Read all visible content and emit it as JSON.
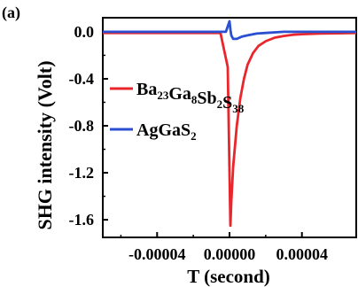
{
  "panel_label": "(a)",
  "chart_data": {
    "type": "line",
    "xlabel": "T (second)",
    "ylabel": "SHG intensity (Volt)",
    "xlim": [
      -7e-05,
      7e-05
    ],
    "ylim": [
      -1.75,
      0.12
    ],
    "x_ticks": [
      -4e-05,
      0.0,
      4e-05
    ],
    "x_tick_labels": [
      "-0.00004",
      "0.00000",
      "0.00004"
    ],
    "y_ticks": [
      0.0,
      -0.4,
      -0.8,
      -1.2,
      -1.6
    ],
    "y_tick_labels": [
      "0.0",
      "-0.4",
      "-0.8",
      "-1.2",
      "-1.6"
    ],
    "legend_position": "center-left",
    "series": [
      {
        "name_main": "Ba",
        "name_parts": [
          [
            "Ba",
            "23"
          ],
          [
            "Ga",
            "8"
          ],
          [
            "Sb",
            "2"
          ],
          [
            "S",
            "38"
          ]
        ],
        "color": "#e8262b",
        "x": [
          -7e-05,
          -4e-05,
          -2e-05,
          -5e-06,
          -1e-06,
          0.0,
          5e-07,
          1e-06,
          2e-06,
          4e-06,
          6e-06,
          8e-06,
          1e-05,
          1.3e-05,
          1.6e-05,
          2e-05,
          2.5e-05,
          3e-05,
          3.5e-05,
          4e-05,
          5e-05,
          7e-05
        ],
        "y": [
          -0.01,
          -0.01,
          -0.01,
          -0.01,
          -0.3,
          -1.2,
          -1.65,
          -1.45,
          -1.15,
          -0.8,
          -0.56,
          -0.4,
          -0.28,
          -0.18,
          -0.12,
          -0.08,
          -0.05,
          -0.035,
          -0.025,
          -0.02,
          -0.015,
          -0.01
        ]
      },
      {
        "name_parts": [
          [
            "AgGaS",
            "2"
          ]
        ],
        "color": "#2b4fd1",
        "x": [
          -7e-05,
          -2e-05,
          -2e-06,
          0.0,
          5e-07,
          1e-06,
          2e-06,
          4e-06,
          7e-06,
          1e-05,
          1.5e-05,
          2e-05,
          3e-05,
          7e-05
        ],
        "y": [
          0.0,
          0.0,
          0.0,
          0.09,
          0.02,
          -0.03,
          -0.06,
          -0.06,
          -0.04,
          -0.03,
          -0.015,
          -0.01,
          0.0,
          0.0
        ]
      }
    ]
  }
}
